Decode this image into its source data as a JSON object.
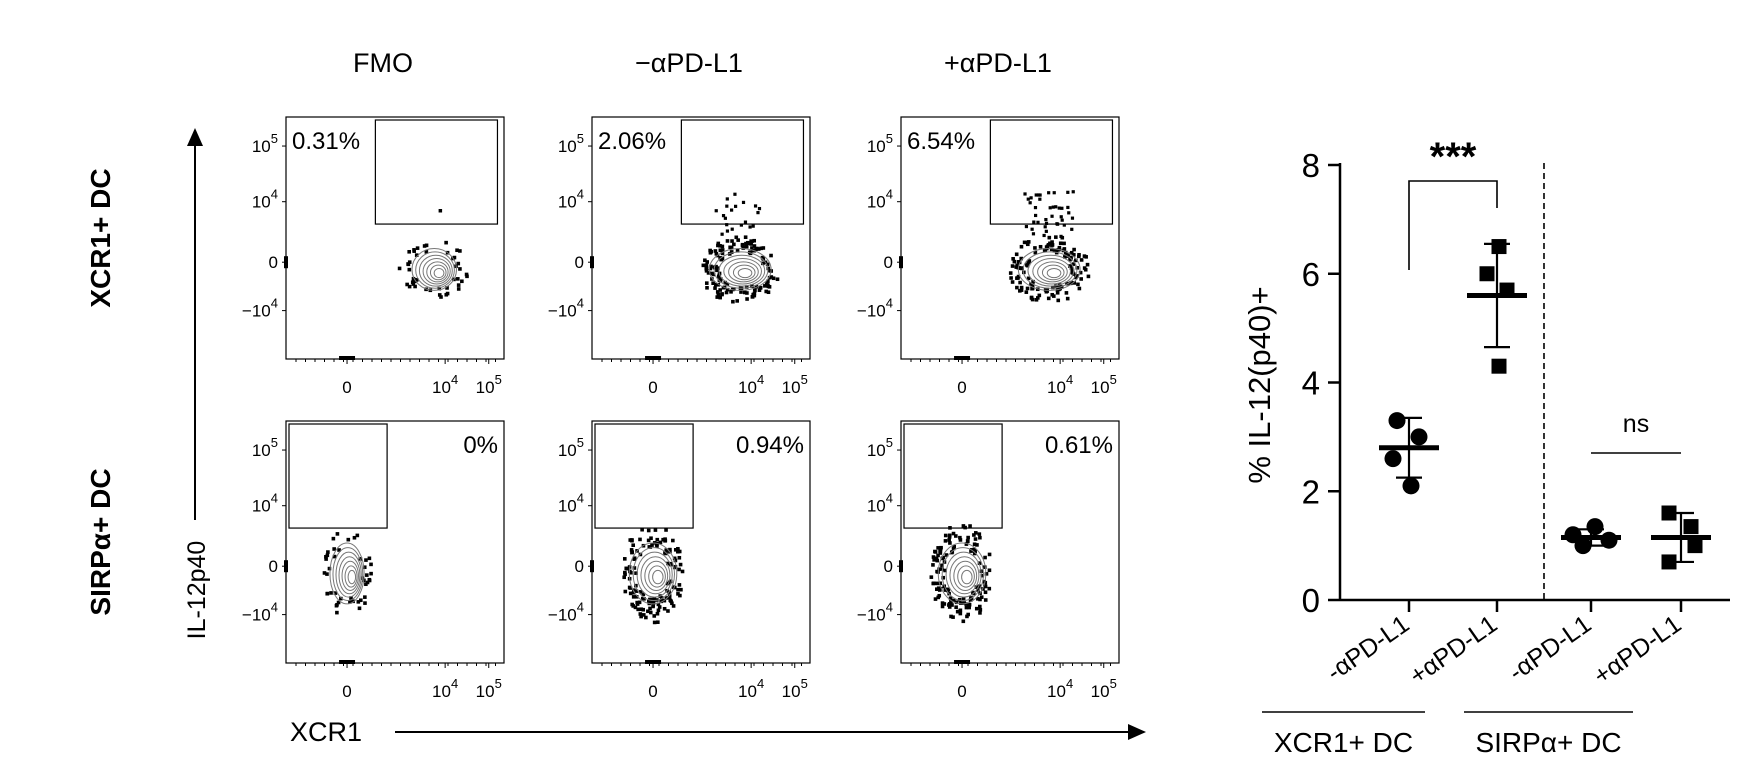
{
  "flow": {
    "columns": [
      "FMO",
      "−αPD-L1",
      "+αPD-L1"
    ],
    "rows": [
      "XCR1+ DC",
      "SIRPα+ DC"
    ],
    "y_axis_label": "IL-12p40",
    "x_axis_label": "XCR1",
    "y_ticks": [
      {
        "base": "10",
        "exp": "5"
      },
      {
        "base": "10",
        "exp": "4"
      },
      {
        "base": "0",
        "exp": ""
      },
      {
        "base": "−10",
        "exp": "4"
      }
    ],
    "x_ticks": [
      {
        "base": "0",
        "exp": ""
      },
      {
        "base": "10",
        "exp": "4"
      },
      {
        "base": "10",
        "exp": "5"
      }
    ],
    "panels": [
      {
        "row": 0,
        "col": 0,
        "percent": "0.31%",
        "gate": "upper-right"
      },
      {
        "row": 0,
        "col": 1,
        "percent": "2.06%",
        "gate": "upper-right"
      },
      {
        "row": 0,
        "col": 2,
        "percent": "6.54%",
        "gate": "upper-right"
      },
      {
        "row": 1,
        "col": 0,
        "percent": "0%",
        "gate": "upper-left"
      },
      {
        "row": 1,
        "col": 1,
        "percent": "0.94%",
        "gate": "upper-left"
      },
      {
        "row": 1,
        "col": 2,
        "percent": "0.61%",
        "gate": "upper-left"
      }
    ]
  },
  "chart_data": {
    "type": "scatter",
    "ylabel": "% IL-12(p40)+",
    "ylim": [
      0,
      8
    ],
    "yticks": [
      0,
      2,
      4,
      6,
      8
    ],
    "categories": [
      "-αPD-L1",
      "+αPD-L1",
      "-αPD-L1",
      "+αPD-L1"
    ],
    "group_labels": [
      "XCR1+ DC",
      "SIRPα+ DC"
    ],
    "groups": [
      {
        "category": 0,
        "marker": "circle",
        "values": [
          3.3,
          3.0,
          2.6,
          2.1
        ],
        "mean": 2.8,
        "sd": 0.55
      },
      {
        "category": 1,
        "marker": "square",
        "values": [
          6.5,
          6.0,
          5.7,
          4.3
        ],
        "mean": 5.6,
        "sd": 0.95
      },
      {
        "category": 2,
        "marker": "circle",
        "values": [
          1.2,
          1.35,
          1.1,
          1.0
        ],
        "mean": 1.15,
        "sd": 0.15
      },
      {
        "category": 3,
        "marker": "square",
        "values": [
          1.6,
          1.35,
          1.0,
          0.7
        ],
        "mean": 1.15,
        "sd": 0.45
      }
    ],
    "significance": [
      {
        "from": 0,
        "to": 1,
        "label": "***"
      },
      {
        "from": 2,
        "to": 3,
        "label": "ns"
      }
    ]
  }
}
